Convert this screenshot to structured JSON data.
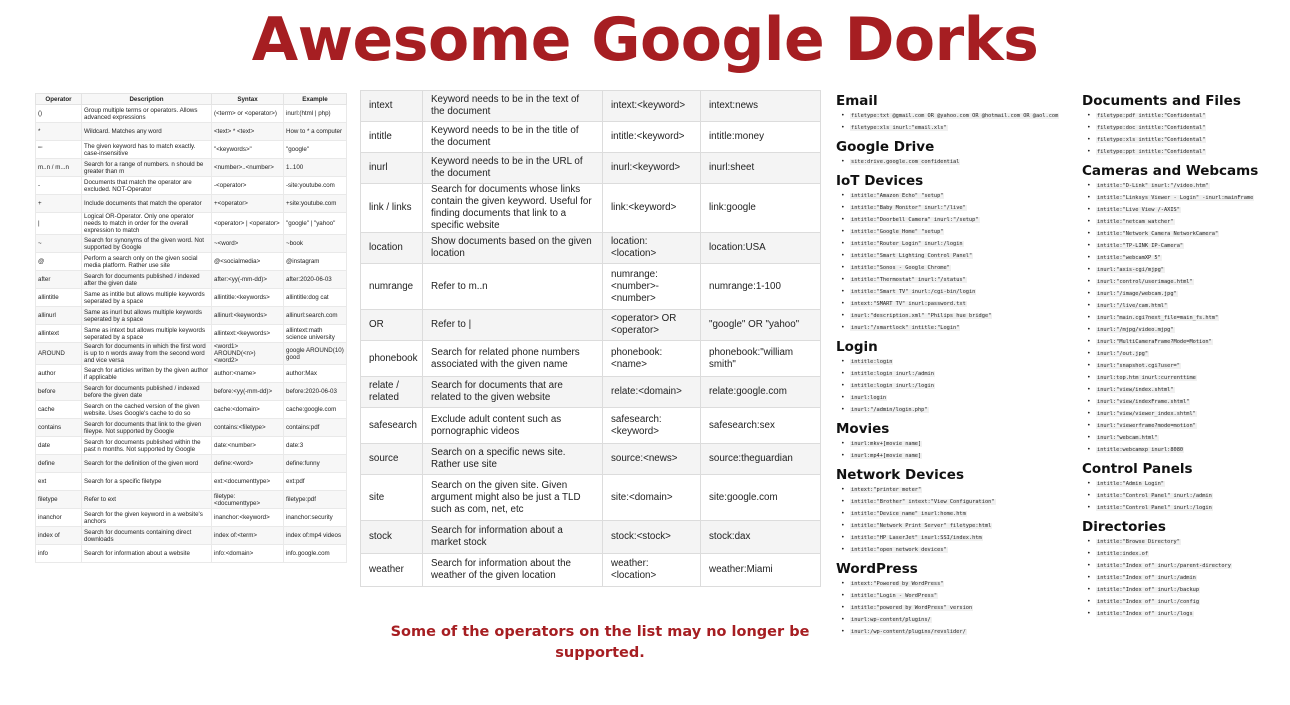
{
  "title": "Awesome Google Dorks",
  "note": "Some of the operators on the list may no longer be supported.",
  "left_table": {
    "headers": [
      "Operator",
      "Description",
      "Syntax",
      "Example"
    ],
    "rows": [
      [
        "()",
        "Group multiple terms or operators. Allows advanced expressions",
        "(<term> or <operator>)",
        "inurl:(html | php)"
      ],
      [
        "*",
        "Wildcard. Matches any word",
        "<text> * <text>",
        "How to * a computer"
      ],
      [
        "\"\"",
        "The given keyword has to match exactly. case-insensitive",
        "\"<keywords>\"",
        "\"google\""
      ],
      [
        "m..n / m...n",
        "Search for a range of numbers. n should be greater than m",
        "<number>..<number>",
        "1..100"
      ],
      [
        "-",
        "Documents that match the operator are excluded. NOT-Operator",
        "-<operator>",
        "-site:youtube.com"
      ],
      [
        "+",
        "Include documents that match the operator",
        "+<operator>",
        "+site:youtube.com"
      ],
      [
        "|",
        "Logical OR-Operator. Only one operator needs to match in order for the overall expression to match",
        "<operator> | <operator>",
        "\"google\" | \"yahoo\""
      ],
      [
        "~",
        "Search for synonyms of the given word. Not supported by Google",
        "~<word>",
        "~book"
      ],
      [
        "@",
        "Perform a search only on the given social media platform. Rather use site",
        "@<socialmedia>",
        "@instagram"
      ],
      [
        "after",
        "Search for documents published / indexed after the given date",
        "after:<yy(-mm-dd)>",
        "after:2020-06-03"
      ],
      [
        "allintitle",
        "Same as intitle but allows multiple keywords seperated by a space",
        "allintitle:<keywords>",
        "allintitle:dog cat"
      ],
      [
        "allinurl",
        "Same as inurl but allows multiple keywords seperated by a space",
        "allinurl:<keywords>",
        "allinurl:search.com"
      ],
      [
        "allintext",
        "Same as intext but allows multiple keywords seperated by a space",
        "allintext:<keywords>",
        "allintext:math science university"
      ],
      [
        "AROUND",
        "Search for documents in which the first word is up to n words away from the second word and vice versa",
        "<word1> AROUND(<n>) <word2>",
        "google AROUND(10) good"
      ],
      [
        "author",
        "Search for articles written by the given author if applicable",
        "author:<name>",
        "author:Max"
      ],
      [
        "before",
        "Search for documents published / indexed before the given date",
        "before:<yy(-mm-dd)>",
        "before:2020-06-03"
      ],
      [
        "cache",
        "Search on the cached version of the given website. Uses Google's cache to do so",
        "cache:<domain>",
        "cache:google.com"
      ],
      [
        "contains",
        "Search for documents that link to the given fileype. Not supported by Google",
        "contains:<filetype>",
        "contains:pdf"
      ],
      [
        "date",
        "Search for documents published within the past n months. Not supported by Google",
        "date:<number>",
        "date:3"
      ],
      [
        "define",
        "Search for the definition of the given word",
        "define:<word>",
        "define:funny"
      ],
      [
        "ext",
        "Search for a specific filetype",
        "ext:<documenttype>",
        "ext:pdf"
      ],
      [
        "filetype",
        "Refer to ext",
        "filetype:<documenttype>",
        "filetype:pdf"
      ],
      [
        "inanchor",
        "Search for the given keyword in a website's anchors",
        "inanchor:<keyword>",
        "inanchor:security"
      ],
      [
        "index of",
        "Search for documents containing direct downloads",
        "index of:<term>",
        "index of:mp4 videos"
      ],
      [
        "info",
        "Search for information about a website",
        "info:<domain>",
        "info.google.com"
      ]
    ]
  },
  "middle_table": {
    "rows": [
      [
        "intext",
        "Keyword needs to be in the text of the document",
        "intext:<keyword>",
        "intext:news"
      ],
      [
        "intitle",
        "Keyword needs to be in the title of the document",
        "intitle:<keyword>",
        "intitle:money"
      ],
      [
        "inurl",
        "Keyword needs to be in the URL of the document",
        "inurl:<keyword>",
        "inurl:sheet"
      ],
      [
        "link / links",
        "Search for documents whose links contain the given keyword. Useful for finding documents that link to a specific website",
        "link:<keyword>",
        "link:google"
      ],
      [
        "location",
        "Show documents based on the given location",
        "location:<location>",
        "location:USA"
      ],
      [
        "numrange",
        "Refer to m..n",
        "numrange:<number>-<number>",
        "numrange:1-100"
      ],
      [
        "OR",
        "Refer to |",
        "<operator> OR <operator>",
        "\"google\" OR \"yahoo\""
      ],
      [
        "phonebook",
        "Search for related phone numbers associated with the given name",
        "phonebook:<name>",
        "phonebook:\"william smith\""
      ],
      [
        "relate / related",
        "Search for documents that are related to the given website",
        "relate:<domain>",
        "relate:google.com"
      ],
      [
        "safesearch",
        "Exclude adult content such as pornographic videos",
        "safesearch:<keyword>",
        "safesearch:sex"
      ],
      [
        "source",
        "Search on a specific news site. Rather use site",
        "source:<news>",
        "source:theguardian"
      ],
      [
        "site",
        "Search on the given site. Given argument might also be just a TLD such as com, net, etc",
        "site:<domain>",
        "site:google.com"
      ],
      [
        "stock",
        "Search for information about a market stock",
        "stock:<stock>",
        "stock:dax"
      ],
      [
        "weather",
        "Search for information about the weather of the given location",
        "weather:<location>",
        "weather:Miami"
      ]
    ]
  },
  "col1": [
    {
      "heading": "Email",
      "items": [
        "filetype:txt @gmail.com OR @yahoo.com OR @hotmail.com OR @aol.com",
        "filetype:xls inurl:\"email.xls\""
      ]
    },
    {
      "heading": "Google Drive",
      "items": [
        "site:drive.google.com confidential"
      ]
    },
    {
      "heading": "IoT Devices",
      "items": [
        "intitle:\"Amazon Echo\" \"setup\"",
        "intitle:\"Baby Monitor\" inurl:\"/live\"",
        "intitle:\"Doorbell Camera\" inurl:\"/setup\"",
        "intitle:\"Google Home\" \"setup\"",
        "intitle:\"Router Login\" inurl:/login",
        "intitle:\"Smart Lighting Control Panel\"",
        "intitle:\"Sonos - Google Chrome\"",
        "intitle:\"Thermostat\" inurl:\"/status\"",
        "intitle:\"Smart TV\" inurl:/cgi-bin/login",
        "intext:\"SMART TV\" inurl:password.txt",
        "inurl:\"description.xml\" \"Philips hue bridge\"",
        "inurl:\"/smartlock\" intitle:\"Login\""
      ]
    },
    {
      "heading": "Login",
      "items": [
        "intitle:login",
        "intitle:login inurl:/admin",
        "intitle:login inurl:/login",
        "inurl:login",
        "inurl:\"/admin/login.php\""
      ]
    },
    {
      "heading": "Movies",
      "items": [
        "inurl:mkv+[movie name]",
        "inurl:mp4+[movie name]"
      ]
    },
    {
      "heading": "Network Devices",
      "items": [
        "intext:\"printer meter\"",
        "intitle:\"Brother\" intext:\"View Configuration\"",
        "intitle:\"Device name\" inurl:home.htm",
        "intitle:\"Network Print Server\" filetype:html",
        "intitle:\"HP LaserJet\" inurl:SSI/index.htm",
        "intitle:\"open network devices\""
      ]
    },
    {
      "heading": "WordPress",
      "items": [
        "intext:\"Powered by WordPress\"",
        "intitle:\"Login - WordPress\"",
        "intitle:\"powered by WordPress\" version",
        "inurl:wp-content/plugins/",
        "inurl:/wp-content/plugins/revslider/"
      ]
    }
  ],
  "col2": [
    {
      "heading": "Documents and Files",
      "items": [
        "filetype:pdf intitle:\"Confidental\"",
        "filetype:doc intitle:\"Confidental\"",
        "filetype:xls intitle:\"Confidental\"",
        "filetype:ppt intitle:\"Confidental\""
      ]
    },
    {
      "heading": "Cameras and Webcams",
      "items": [
        "intitle:\"D-Link\" inurl:\"/video.htm\"",
        "intitle:\"Linksys Viewer - Login\" -inurl:mainFrame",
        "intitle:\"Live View /-AXIS\"",
        "intitle:\"netcam watcher\"",
        "intitle:\"Network Camera NetworkCamera\"",
        "intitle:\"TP-LINK IP-Camera\"",
        "intitle:\"webcamXP 5\"",
        "inurl:\"axis-cgi/mjpg\"",
        "inurl:\"control/userimage.html\"",
        "inurl:\"/image/webcam.jpg\"",
        "inurl:\"/live/cam.html\"",
        "inurl:\"main.cgi?next_file=main_fs.htm\"",
        "inurl:\"/mjpg/video.mjpg\"",
        "inurl:\"MultiCameraFrame?Mode=Motion\"",
        "inurl:\"/out.jpg\"",
        "inurl:\"snapshot.cgi?user=\"",
        "inurl:top.htm inurl:currenttime",
        "inurl:\"view/index.shtml\"",
        "inurl:\"view/indexFrame.shtml\"",
        "inurl:\"view/viewer_index.shtml\"",
        "inurl:\"viewerframe?mode=motion\"",
        "inurl:\"webcam.html\"",
        "intitle:webcamxp inurl:8080"
      ]
    },
    {
      "heading": "Control Panels",
      "items": [
        "intitle:\"Admin Login\"",
        "intitle:\"Control Panel\" inurl:/admin",
        "intitle:\"Control Panel\" inurl:/login"
      ]
    },
    {
      "heading": "Directories",
      "items": [
        "intitle:\"Browse Directory\"",
        "intitle:index.of",
        "intitle:\"Index of\" inurl:/parent-directory",
        "intitle:\"Index of\" inurl:/admin",
        "intitle:\"Index of\" inurl:/backup",
        "intitle:\"Index of\" inurl:/config",
        "intitle:\"Index of\" inurl:/logs"
      ]
    }
  ]
}
